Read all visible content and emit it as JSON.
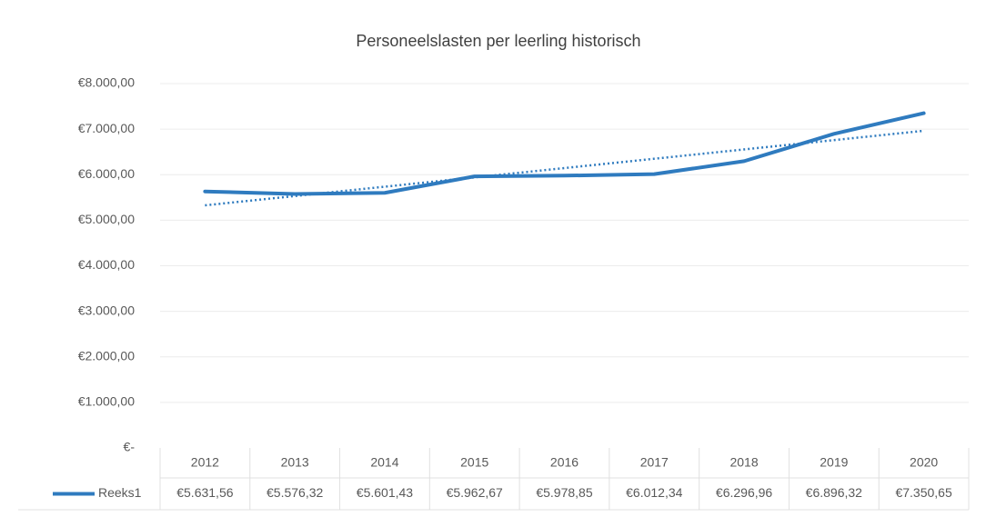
{
  "chart_data": {
    "type": "line",
    "title": "Personeelslasten per leerling historisch",
    "categories": [
      "2012",
      "2013",
      "2014",
      "2015",
      "2016",
      "2017",
      "2018",
      "2019",
      "2020"
    ],
    "series": [
      {
        "name": "Reeks1",
        "color": "#2f7bbf",
        "values": [
          5631.56,
          5576.32,
          5601.43,
          5962.67,
          5978.85,
          6012.34,
          6296.96,
          6896.32,
          7350.65
        ],
        "value_labels": [
          "€5.631,56",
          "€5.576,32",
          "€5.601,43",
          "€5.962,67",
          "€5.978,85",
          "€6.012,34",
          "€6.296,96",
          "€6.896,32",
          "€7.350,65"
        ]
      }
    ],
    "trendline": "linear",
    "ylim": [
      0,
      8000
    ],
    "yticks": [
      {
        "value": 0,
        "label": "€-"
      },
      {
        "value": 1000,
        "label": "€1.000,00"
      },
      {
        "value": 2000,
        "label": "€2.000,00"
      },
      {
        "value": 3000,
        "label": "€3.000,00"
      },
      {
        "value": 4000,
        "label": "€4.000,00"
      },
      {
        "value": 5000,
        "label": "€5.000,00"
      },
      {
        "value": 6000,
        "label": "€6.000,00"
      },
      {
        "value": 7000,
        "label": "€7.000,00"
      },
      {
        "value": 8000,
        "label": "€8.000,00"
      }
    ],
    "grid": true,
    "data_table": true
  }
}
